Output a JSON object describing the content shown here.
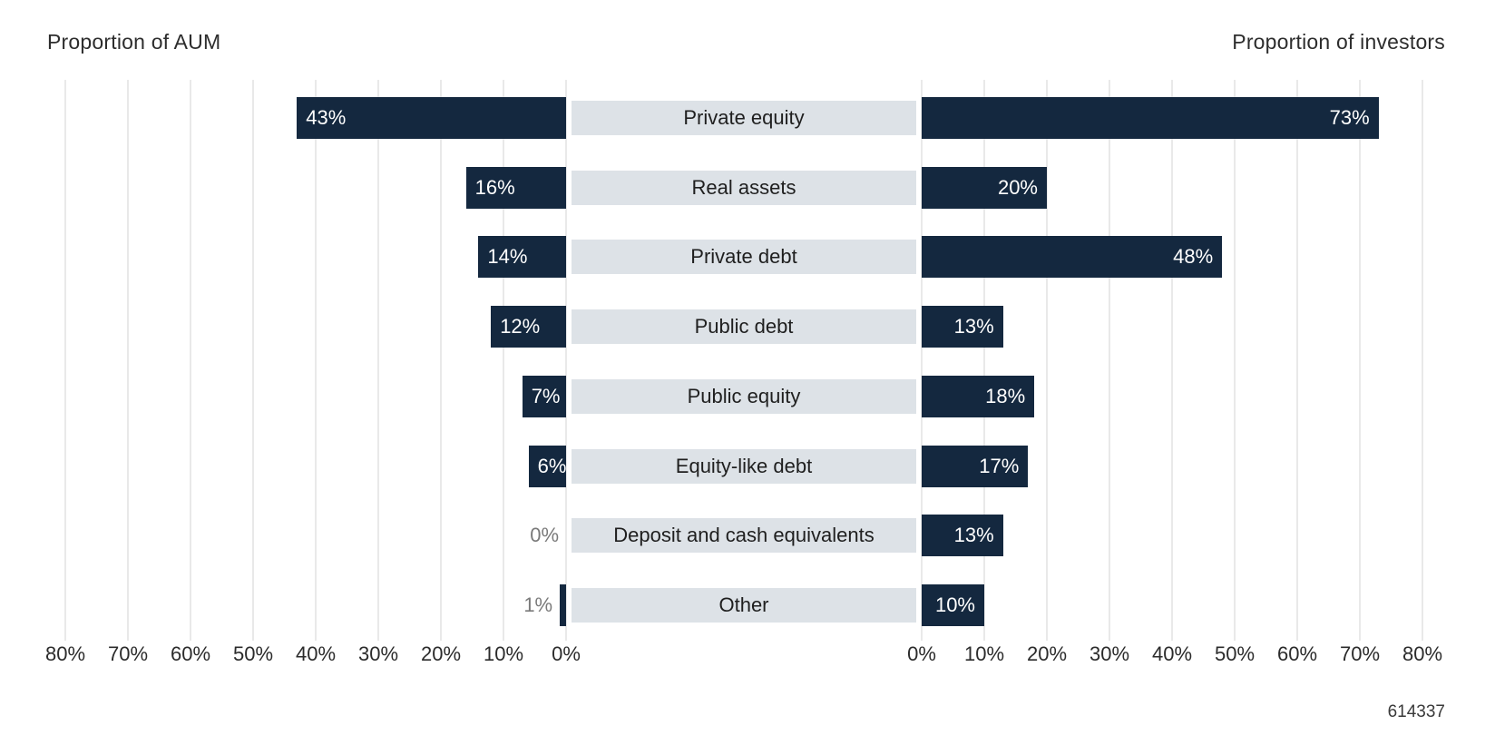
{
  "titles": {
    "left": "Proportion of AUM",
    "right": "Proportion of investors"
  },
  "footnote": "614337",
  "colors": {
    "bar": "#14283F",
    "band": "#DDE2E7",
    "bar_value_label": "#FFFFFF",
    "muted_value_label": "#7A7A7A",
    "category_label": "#1F1F1F",
    "axis_label": "#2B2B2B",
    "gridline": "#E9E9E9",
    "background": "#FFFFFF"
  },
  "chart_data": {
    "type": "bar",
    "subtype": "diverging_butterfly",
    "title": "",
    "left_axis_title": "Proportion of AUM",
    "right_axis_title": "Proportion of investors",
    "categories": [
      "Private equity",
      "Real assets",
      "Private debt",
      "Public debt",
      "Public equity",
      "Equity-like debt",
      "Deposit and cash equivalents",
      "Other"
    ],
    "series": [
      {
        "name": "Proportion of AUM",
        "side": "left",
        "values": [
          43,
          16,
          14,
          12,
          7,
          6,
          0,
          1
        ]
      },
      {
        "name": "Proportion of investors",
        "side": "right",
        "values": [
          73,
          20,
          48,
          13,
          18,
          17,
          13,
          10
        ]
      }
    ],
    "value_suffix": "%",
    "axes": {
      "left_ticks": [
        "80%",
        "70%",
        "60%",
        "50%",
        "40%",
        "30%",
        "20%",
        "10%",
        "0%"
      ],
      "right_ticks": [
        "0%",
        "10%",
        "20%",
        "30%",
        "40%",
        "50%",
        "60%",
        "70%",
        "80%"
      ],
      "max": 80,
      "step": 10,
      "grid": true
    },
    "legend_position": "none",
    "value_labels": "on_bars"
  }
}
